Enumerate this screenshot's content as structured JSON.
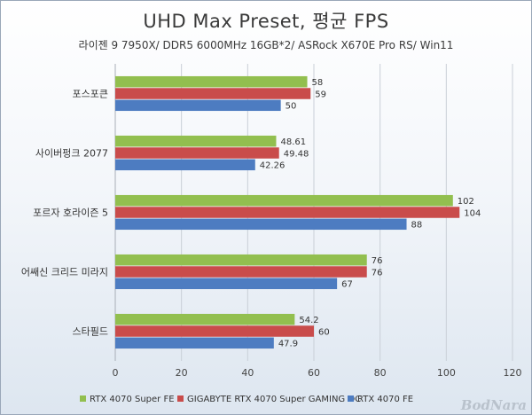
{
  "chart_data": {
    "type": "bar",
    "orientation": "horizontal",
    "title": "UHD Max Preset, 평균 FPS",
    "subtitle": "라이젠 9 7950X/ DDR5 6000MHz 16GB*2/ ASRock X670E Pro RS/ Win11",
    "categories": [
      "포스포큰",
      "사이버펑크 2077",
      "포르자 호라이즌 5",
      "어쌔신 크리드 미라지",
      "스타필드"
    ],
    "series": [
      {
        "name": "RTX 4070 Super FE",
        "color": "#92bf4f",
        "values": [
          58,
          48.61,
          102,
          76,
          54.2
        ],
        "labels": [
          "58",
          "48.61",
          "102",
          "76",
          "54.2"
        ]
      },
      {
        "name": "GIGABYTE RTX 4070 Super GAMING OC",
        "color": "#c94c4b",
        "values": [
          59,
          49.48,
          104,
          76,
          60
        ],
        "labels": [
          "59",
          "49.48",
          "104",
          "76",
          "60"
        ]
      },
      {
        "name": "RTX 4070 FE",
        "color": "#4d7cc1",
        "values": [
          50,
          42.26,
          88,
          67,
          47.9
        ],
        "labels": [
          "50",
          "42.26",
          "88",
          "67",
          "47.9"
        ]
      }
    ],
    "xlim": [
      0,
      120
    ],
    "xticks": [
      0,
      20,
      40,
      60,
      80,
      100,
      120
    ],
    "grid": "vertical",
    "legend": "bottom"
  },
  "watermark": "BodNara"
}
